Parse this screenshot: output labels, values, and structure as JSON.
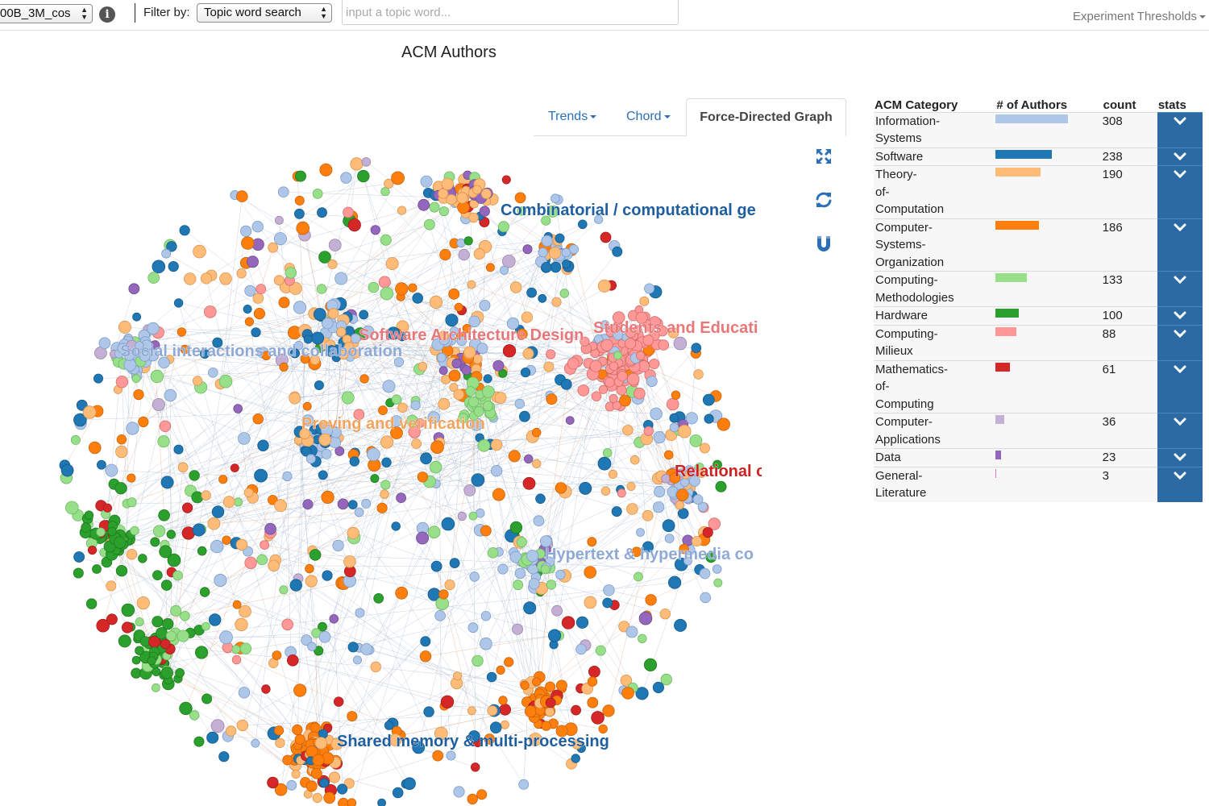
{
  "toolbar": {
    "model_select": "00B_3M_cos",
    "info_icon": "info-icon",
    "filter_label": "Filter by:",
    "filter_select": "Topic word search",
    "topic_placeholder": "input a topic word...",
    "thresholds": "Experiment Thresholds"
  },
  "page_title": "ACM Authors",
  "tabs": [
    {
      "label": "Trends"
    },
    {
      "label": "Chord"
    },
    {
      "label": "Force-Directed Graph"
    }
  ],
  "tools": [
    "fullscreen-icon",
    "refresh-icon",
    "magnet-icon"
  ],
  "graph": {
    "cluster_labels": [
      {
        "text": "Combinatorial / computational ge",
        "color": "#1f5fa0"
      },
      {
        "text": "Software Architecture Design",
        "color": "#e8777a"
      },
      {
        "text": "Students and Educati",
        "color": "#e8777a"
      },
      {
        "text": "Social interactions and collaboration",
        "color": "#8fa9d6"
      },
      {
        "text": "Proving and verification",
        "color": "#f2a35c"
      },
      {
        "text": "Relational c",
        "color": "#cc2222"
      },
      {
        "text": "Hypertext & hypermedia co",
        "color": "#8fa9d6"
      },
      {
        "text": "Shared memory & multi-processing",
        "color": "#1f5fa0"
      }
    ]
  },
  "stats": {
    "headers": [
      "ACM Category",
      "# of Authors",
      "count",
      "stats"
    ],
    "rows": [
      {
        "lines": [
          "Information-",
          "Systems"
        ],
        "count": 308,
        "color": "#aec7e8"
      },
      {
        "lines": [
          "Software"
        ],
        "count": 238,
        "color": "#1f77b4"
      },
      {
        "lines": [
          "Theory-",
          "of-",
          "Computation"
        ],
        "count": 190,
        "color": "#ffbb78"
      },
      {
        "lines": [
          "Computer-",
          "Systems-",
          "Organization"
        ],
        "count": 186,
        "color": "#ff7f0e"
      },
      {
        "lines": [
          "Computing-",
          "Methodologies"
        ],
        "count": 133,
        "color": "#98df8a"
      },
      {
        "lines": [
          "Hardware"
        ],
        "count": 100,
        "color": "#2ca02c"
      },
      {
        "lines": [
          "Computing-",
          "Milieux"
        ],
        "count": 88,
        "color": "#ff9896"
      },
      {
        "lines": [
          "Mathematics-",
          "of-",
          "Computing"
        ],
        "count": 61,
        "color": "#d62728"
      },
      {
        "lines": [
          "Computer-",
          "Applications"
        ],
        "count": 36,
        "color": "#c5b0d5"
      },
      {
        "lines": [
          "Data"
        ],
        "count": 23,
        "color": "#9467bd"
      },
      {
        "lines": [
          "General-",
          "Literature"
        ],
        "count": 3,
        "color": "#e377c2"
      }
    ]
  }
}
